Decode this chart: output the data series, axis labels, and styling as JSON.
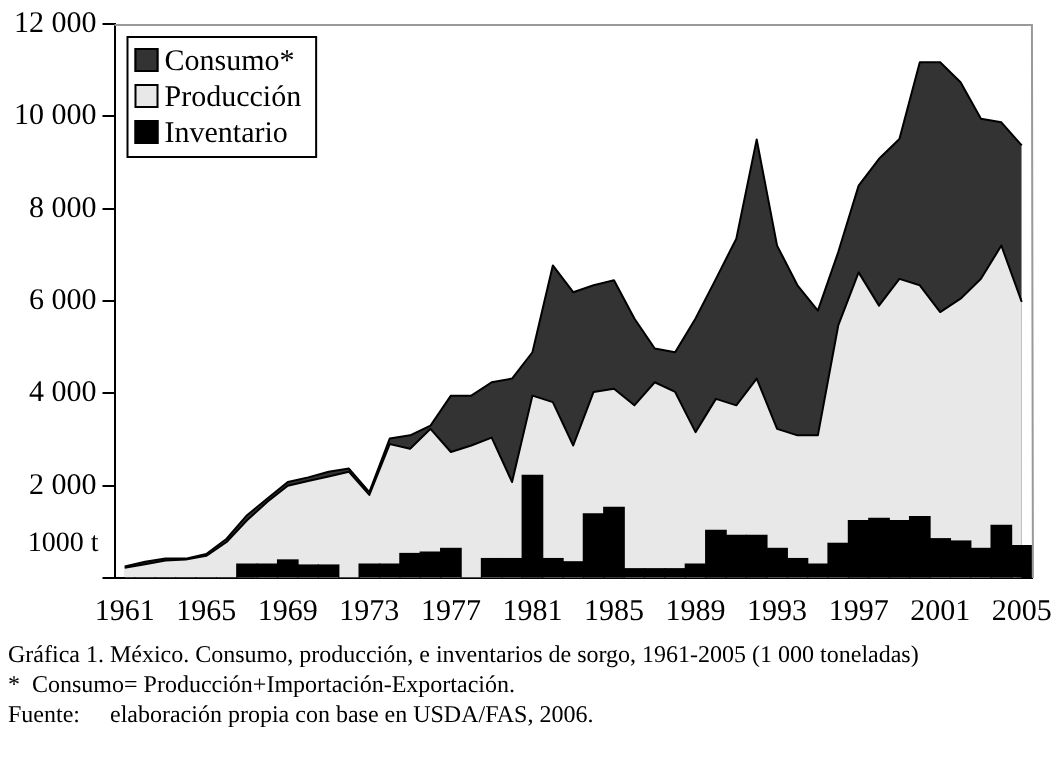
{
  "chart_data": {
    "type": "area",
    "title": "Gráfica 1. México. Consumo, producción, e inventarios de sorgo, 1961-2005 (1 000 toneladas)",
    "ylabel": "1000 t",
    "annotations": [
      "*  Consumo= Producción+Importación-Exportación.",
      "Fuente:     elaboración propia con base en USDA/FAS, 2006."
    ],
    "categories": [
      "1961",
      null,
      null,
      null,
      "1965",
      null,
      null,
      null,
      "1969",
      null,
      null,
      null,
      "1973",
      null,
      null,
      null,
      "1977",
      null,
      null,
      null,
      "1981",
      null,
      null,
      null,
      "1985",
      null,
      null,
      null,
      "1989",
      null,
      null,
      null,
      "1993",
      null,
      null,
      null,
      "1997",
      null,
      null,
      null,
      "2001",
      null,
      null,
      null,
      "2005"
    ],
    "series": [
      {
        "name": "Consumo*",
        "color": "#333333",
        "values": [
          250,
          350,
          420,
          420,
          520,
          850,
          1360,
          1720,
          2080,
          2180,
          2300,
          2370,
          1860,
          3020,
          3090,
          3300,
          3950,
          3950,
          4240,
          4320,
          4890,
          6770,
          6190,
          6340,
          6450,
          5620,
          4970,
          4890,
          5620,
          6480,
          7350,
          9500,
          7200,
          6340,
          5790,
          7060,
          8500,
          9080,
          9510,
          11170,
          11170,
          10740,
          9950,
          9870,
          9370
        ]
      },
      {
        "name": "Producción",
        "color": "#e8e8e8",
        "values": [
          220,
          300,
          380,
          400,
          480,
          780,
          1250,
          1650,
          2000,
          2100,
          2200,
          2300,
          1800,
          2900,
          2800,
          3230,
          2730,
          2870,
          3040,
          2080,
          3950,
          3810,
          2870,
          4030,
          4100,
          3740,
          4240,
          4030,
          3160,
          3880,
          3740,
          4320,
          3230,
          3090,
          3090,
          5470,
          6620,
          5900,
          6480,
          6340,
          5760,
          6050,
          6480,
          7200,
          5980
        ]
      },
      {
        "name": "Inventario",
        "type": "bar",
        "color": "#000000",
        "values": [
          0,
          0,
          0,
          0,
          0,
          0,
          300,
          300,
          390,
          280,
          280,
          0,
          300,
          300,
          530,
          560,
          640,
          0,
          420,
          420,
          2220,
          420,
          350,
          1390,
          1530,
          200,
          200,
          200,
          300,
          1030,
          920,
          920,
          640,
          420,
          300,
          750,
          1240,
          1290,
          1240,
          1330,
          850,
          800,
          640,
          1140,
          700
        ]
      }
    ],
    "ylim": [
      0,
      12000
    ],
    "yticks": [
      {
        "value": 0,
        "label": null
      },
      {
        "value": 2000,
        "label": "2 000"
      },
      {
        "value": 4000,
        "label": "4 000"
      },
      {
        "value": 6000,
        "label": "6 000"
      },
      {
        "value": 8000,
        "label": "8 000"
      },
      {
        "value": 10000,
        "label": "10 000"
      },
      {
        "value": 12000,
        "label": "12 000"
      }
    ],
    "grid": false,
    "legend": "top left",
    "marker": "none",
    "line_style": "solid"
  }
}
